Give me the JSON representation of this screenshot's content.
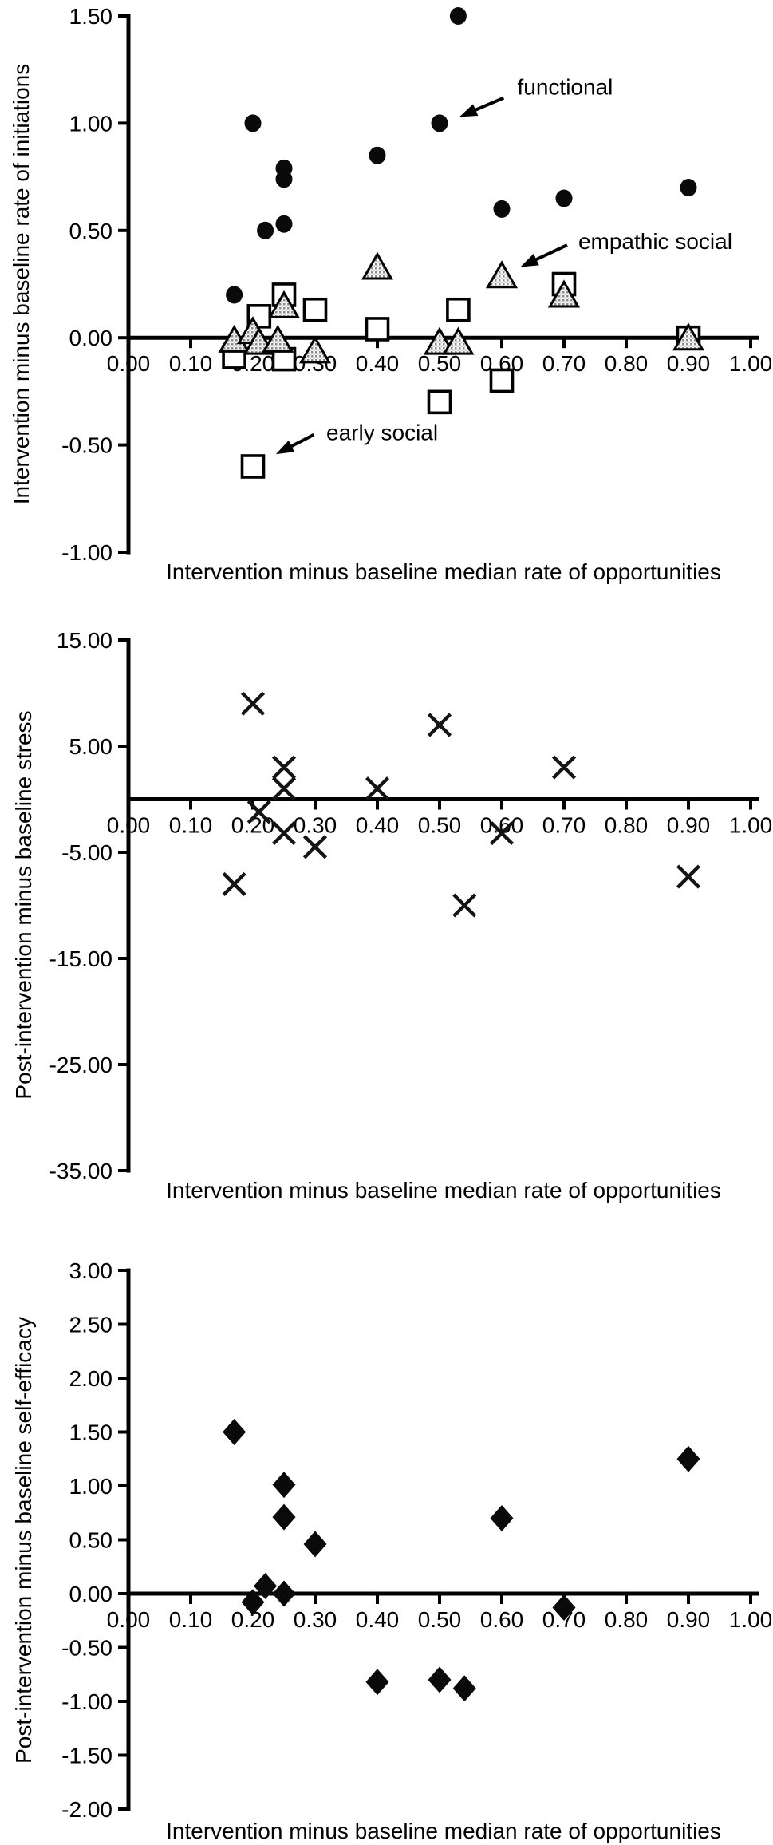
{
  "figure": {
    "background": "#ffffff",
    "ink_color": "#000000",
    "marker_fill": "#0a0a0a",
    "triangle_pattern_dark": "#8a8a8a",
    "triangle_pattern_light": "#d2d2d2"
  },
  "chart_data": [
    {
      "id": "initiations",
      "type": "scatter",
      "title": "",
      "xlabel": "Intervention minus baseline median rate of opportunities",
      "ylabel": "Intervention minus baseline rate of initiations",
      "xlim": [
        0.0,
        1.0
      ],
      "ylim": [
        -1.0,
        1.5
      ],
      "grid": false,
      "legend": "arrow annotations instead of legend box",
      "x_tick_values": [
        0,
        0.1,
        0.2,
        0.3,
        0.4,
        0.5,
        0.6,
        0.7,
        0.8,
        0.9,
        1
      ],
      "x_tick_labels": [
        "0.00",
        "0.10",
        "0.20",
        "0.30",
        "0.40",
        "0.50",
        "0.60",
        "0.70",
        "0.80",
        "0.90",
        "1.00"
      ],
      "y_tick_values": [
        1.5,
        1.0,
        0.5,
        0.0,
        -0.5,
        -1.0
      ],
      "y_tick_labels": [
        "1.50",
        "1.00",
        "0.50",
        "0.00",
        "-0.50",
        "-1.00"
      ],
      "series": [
        {
          "name": "functional",
          "marker": "filled-circle",
          "points": [
            [
              0.17,
              0.2
            ],
            [
              0.2,
              1.0
            ],
            [
              0.22,
              0.5
            ],
            [
              0.25,
              0.53
            ],
            [
              0.25,
              0.74
            ],
            [
              0.25,
              0.79
            ],
            [
              0.4,
              0.85
            ],
            [
              0.5,
              1.0
            ],
            [
              0.53,
              1.5
            ],
            [
              0.6,
              0.6
            ],
            [
              0.7,
              0.65
            ],
            [
              0.9,
              0.7
            ]
          ]
        },
        {
          "name": "early social",
          "marker": "open-square",
          "points": [
            [
              0.17,
              -0.09
            ],
            [
              0.2,
              -0.6
            ],
            [
              0.21,
              0.1
            ],
            [
              0.25,
              0.2
            ],
            [
              0.25,
              -0.1
            ],
            [
              0.3,
              0.13
            ],
            [
              0.4,
              0.04
            ],
            [
              0.5,
              -0.3
            ],
            [
              0.53,
              0.13
            ],
            [
              0.6,
              -0.2
            ],
            [
              0.7,
              0.25
            ],
            [
              0.9,
              0.0
            ]
          ]
        },
        {
          "name": "empathic social",
          "marker": "patterned-triangle",
          "points": [
            [
              0.17,
              -0.01
            ],
            [
              0.2,
              0.03
            ],
            [
              0.21,
              -0.02
            ],
            [
              0.24,
              -0.01
            ],
            [
              0.25,
              0.15
            ],
            [
              0.3,
              -0.06
            ],
            [
              0.4,
              0.33
            ],
            [
              0.5,
              -0.02
            ],
            [
              0.53,
              -0.02
            ],
            [
              0.6,
              0.29
            ],
            [
              0.7,
              0.2
            ],
            [
              0.9,
              0.0
            ]
          ]
        }
      ],
      "annotations": [
        {
          "text": "functional",
          "tx": 0.625,
          "ty": 1.17,
          "x1": 0.603,
          "y1": 1.118,
          "x2": 0.532,
          "y2": 1.03
        },
        {
          "text": "empathic social",
          "tx": 0.723,
          "ty": 0.45,
          "x1": 0.705,
          "y1": 0.432,
          "x2": 0.63,
          "y2": 0.33
        },
        {
          "text": "early social",
          "tx": 0.318,
          "ty": -0.44,
          "x1": 0.298,
          "y1": -0.452,
          "x2": 0.237,
          "y2": -0.543
        }
      ]
    },
    {
      "id": "stress",
      "type": "scatter",
      "title": "",
      "xlabel": "Intervention minus baseline median rate of opportunities",
      "ylabel": "Post-intervention minus baseline stress",
      "xlim": [
        0.0,
        1.0
      ],
      "ylim": [
        -35.0,
        15.0
      ],
      "grid": false,
      "x_tick_values": [
        0,
        0.1,
        0.2,
        0.3,
        0.4,
        0.5,
        0.6,
        0.7,
        0.8,
        0.9,
        1
      ],
      "x_tick_labels": [
        "0.00",
        "0.10",
        "0.20",
        "0.30",
        "0.40",
        "0.50",
        "0.60",
        "0.70",
        "0.80",
        "0.90",
        "1.00"
      ],
      "y_tick_values": [
        15,
        5,
        -5,
        -15,
        -25,
        -35
      ],
      "y_tick_labels": [
        "15.00",
        "5.00",
        "-5.00",
        "-15.00",
        "-25.00",
        "-35.00"
      ],
      "series": [
        {
          "name": "",
          "marker": "x-cross",
          "points": [
            [
              0.17,
              -8.0
            ],
            [
              0.2,
              9.0
            ],
            [
              0.21,
              -1.2
            ],
            [
              0.25,
              3.0
            ],
            [
              0.25,
              1.0
            ],
            [
              0.25,
              -3.2
            ],
            [
              0.3,
              -4.5
            ],
            [
              0.4,
              1.0
            ],
            [
              0.5,
              7.0
            ],
            [
              0.54,
              -10.0
            ],
            [
              0.6,
              -3.2
            ],
            [
              0.7,
              3.0
            ],
            [
              0.9,
              -7.3
            ]
          ]
        }
      ],
      "annotations": []
    },
    {
      "id": "self-efficacy",
      "type": "scatter",
      "title": "",
      "xlabel": "Intervention minus baseline median rate of opportunities",
      "ylabel": "Post-intervention minus baseline self-efficacy",
      "xlim": [
        0.0,
        1.0
      ],
      "ylim": [
        -2.0,
        3.0
      ],
      "grid": false,
      "x_tick_values": [
        0,
        0.1,
        0.2,
        0.3,
        0.4,
        0.5,
        0.6,
        0.7,
        0.8,
        0.9,
        1
      ],
      "x_tick_labels": [
        "0.00",
        "0.10",
        "0.20",
        "0.30",
        "0.40",
        "0.50",
        "0.60",
        "0.70",
        "0.80",
        "0.90",
        "1.00"
      ],
      "y_tick_values": [
        3.0,
        2.5,
        2.0,
        1.5,
        1.0,
        0.5,
        0.0,
        -0.5,
        -1.0,
        -1.5,
        -2.0
      ],
      "y_tick_labels": [
        "3.00",
        "2.50",
        "2.00",
        "1.50",
        "1.00",
        "0.50",
        "0.00",
        "-0.50",
        "-1.00",
        "-1.50",
        "-2.00"
      ],
      "series": [
        {
          "name": "",
          "marker": "filled-diamond",
          "points": [
            [
              0.17,
              1.5
            ],
            [
              0.2,
              -0.08
            ],
            [
              0.22,
              0.07
            ],
            [
              0.25,
              1.01
            ],
            [
              0.25,
              0.71
            ],
            [
              0.25,
              0.0
            ],
            [
              0.3,
              0.46
            ],
            [
              0.4,
              -0.82
            ],
            [
              0.5,
              -0.8
            ],
            [
              0.54,
              -0.88
            ],
            [
              0.6,
              0.7
            ],
            [
              0.7,
              -0.13
            ],
            [
              0.9,
              1.25
            ]
          ]
        }
      ],
      "annotations": []
    }
  ]
}
